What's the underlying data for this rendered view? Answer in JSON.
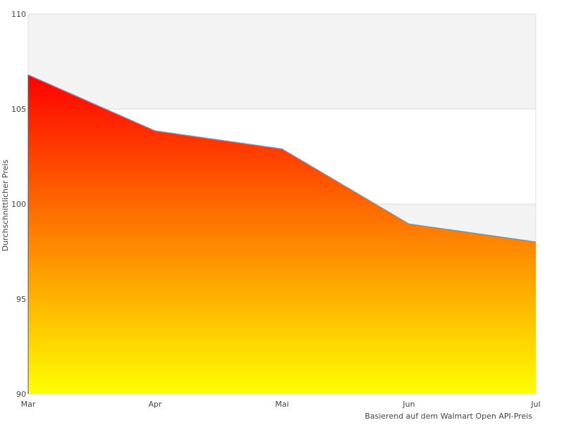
{
  "chart_data": {
    "type": "area",
    "title": "",
    "xlabel": "Basierend auf dem Walmart Open API-Preis",
    "ylabel": "Durchschnittlicher Preis",
    "categories": [
      "Mar",
      "Apr",
      "Mai",
      "Jun",
      "Jul"
    ],
    "values": [
      106.8,
      103.85,
      102.9,
      98.95,
      98.0
    ],
    "ylim": [
      90,
      110
    ],
    "yticks": [
      90,
      95,
      100,
      105,
      110
    ],
    "grid": true,
    "band_color": "#f3f3f3",
    "line_color": "#5b9bd5",
    "gradient_top": "#ff0000",
    "gradient_bottom": "#ffff00"
  }
}
